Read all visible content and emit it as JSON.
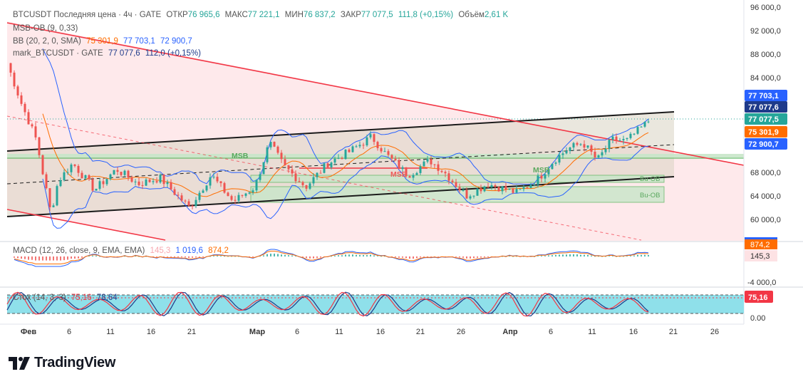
{
  "header": {
    "symbol": "BTCUSDT Последняя цена · 4ч · GATE",
    "open_label": "ОТКР",
    "open": "76 965,6",
    "high_label": "МАКС",
    "high": "77 221,1",
    "low_label": "МИН",
    "low": "76 837,2",
    "close_label": "ЗАКР",
    "close": "77 077,5",
    "change": "111,8 (+0,15%)",
    "volume_label": "Объём",
    "volume": "2,61 K"
  },
  "indicators": {
    "msb_ob": "MSB-OB (9, 0,33)",
    "bb_label": "BB (20, 2, 0, SMA)",
    "bb_basis": "75 301,9",
    "bb_upper": "77 703,1",
    "bb_lower": "72 900,7",
    "mark_label": "mark_BTCUSDT · GATE",
    "mark_price": "77 077,6",
    "mark_change": "112,0 (+0,15%)",
    "macd_label": "MACD (12, 26, close, 9, EMA, EMA)",
    "macd_hist": "145,3",
    "macd_line": "1 019,6",
    "macd_signal": "874,2",
    "stoch_label": "Стох (14, 3, 3)",
    "stoch_k": "75,16",
    "stoch_d": "78,64"
  },
  "colors": {
    "up": "#26a69a",
    "down": "#ef5350",
    "bb": "#2962ff",
    "basis": "#ff6d00",
    "channel": "#1b1b1b",
    "downtrend": "#f23645",
    "zone_green": "#c8e6c9",
    "zone_pink": "#fde2e4",
    "stoch_bg": "#8fe0ea",
    "macd": "#2962ff",
    "signal": "#ff6d00"
  },
  "chart_data": [
    {
      "type": "candlestick",
      "title": "BTCUSDT Последняя цена · 4ч · GATE",
      "ylim": [
        57000,
        96000
      ],
      "y_ticks": [
        96000,
        92000,
        88000,
        84000,
        68000,
        64000,
        60000
      ],
      "y_tick_labels": [
        "96 000,0",
        "92 000,0",
        "88 000,0",
        "84 000,0",
        "68 000,0",
        "64 000,0",
        "60 000,0"
      ],
      "x_ticks": [
        "Фев",
        "6",
        "11",
        "16",
        "21",
        "Мар",
        "6",
        "11",
        "16",
        "21",
        "26",
        "Апр",
        "6",
        "11",
        "16",
        "21",
        "26"
      ],
      "close_path": [
        {
          "day": 0,
          "close": 87000
        },
        {
          "day": 2,
          "close": 80000
        },
        {
          "day": 4,
          "close": 74000
        },
        {
          "day": 6,
          "close": 61500
        },
        {
          "day": 7,
          "close": 67000
        },
        {
          "day": 9,
          "close": 70000
        },
        {
          "day": 12,
          "close": 65500
        },
        {
          "day": 15,
          "close": 69000
        },
        {
          "day": 18,
          "close": 66500
        },
        {
          "day": 21,
          "close": 67500
        },
        {
          "day": 25,
          "close": 62500
        },
        {
          "day": 28,
          "close": 68000
        },
        {
          "day": 31,
          "close": 63500
        },
        {
          "day": 34,
          "close": 66000
        },
        {
          "day": 36,
          "close": 73500
        },
        {
          "day": 38,
          "close": 69500
        },
        {
          "day": 41,
          "close": 66000
        },
        {
          "day": 44,
          "close": 70000
        },
        {
          "day": 47,
          "close": 72000
        },
        {
          "day": 50,
          "close": 74500
        },
        {
          "day": 52,
          "close": 71500
        },
        {
          "day": 55,
          "close": 68000
        },
        {
          "day": 58,
          "close": 70500
        },
        {
          "day": 60,
          "close": 68500
        },
        {
          "day": 63,
          "close": 64500
        },
        {
          "day": 66,
          "close": 66500
        },
        {
          "day": 70,
          "close": 65000
        },
        {
          "day": 73,
          "close": 67500
        },
        {
          "day": 75,
          "close": 70500
        },
        {
          "day": 77,
          "close": 72500
        },
        {
          "day": 79,
          "close": 73500
        },
        {
          "day": 81,
          "close": 70500
        },
        {
          "day": 83,
          "close": 74000
        },
        {
          "day": 85,
          "close": 73800
        },
        {
          "day": 87,
          "close": 76000
        },
        {
          "day": 88,
          "close": 77077.5
        }
      ],
      "levels": [
        {
          "name": "last",
          "value": 77077.5,
          "label": "77 077,5",
          "color": "#26a69a"
        },
        {
          "name": "mark",
          "value": 77077.6,
          "label": "77 077,6",
          "color": "#1e3a8a"
        },
        {
          "name": "bb_upper",
          "value": 77703.1,
          "label": "77 703,1",
          "color": "#2962ff"
        },
        {
          "name": "bb_basis",
          "value": 75301.9,
          "label": "75 301,9",
          "color": "#ff6d00"
        },
        {
          "name": "bb_lower",
          "value": 72900.7,
          "label": "72 900,7",
          "color": "#2962ff"
        }
      ],
      "annotations": [
        "MSB",
        "MSB",
        "MSB",
        "Bu-OB",
        "Bu-OB"
      ],
      "ob_zones": [
        {
          "name": "Bu-OB",
          "low": 66500,
          "high": 67500
        },
        {
          "name": "Bu-OB",
          "low": 62800,
          "high": 65500
        }
      ]
    },
    {
      "type": "line",
      "title": "MACD (12, 26, close, 9, EMA, EMA)",
      "series": [
        {
          "name": "MACD",
          "last": 1019.6
        },
        {
          "name": "Signal",
          "last": 874.2
        },
        {
          "name": "Histogram",
          "last": 145.3
        }
      ],
      "y_ticks": [
        -4000
      ],
      "y_tick_labels": [
        "-4 000,0"
      ],
      "value_labels": [
        "874,2",
        "145,3"
      ]
    },
    {
      "type": "line",
      "title": "Стох (14, 3, 3)",
      "series": [
        {
          "name": "%K",
          "last": 75.16
        },
        {
          "name": "%D",
          "last": 78.64
        }
      ],
      "ylim": [
        0,
        100
      ],
      "y_ticks": [
        0
      ],
      "y_tick_labels": [
        "0.00"
      ],
      "value_labels": [
        "75,16"
      ]
    }
  ],
  "brand": {
    "name": "TradingView"
  }
}
